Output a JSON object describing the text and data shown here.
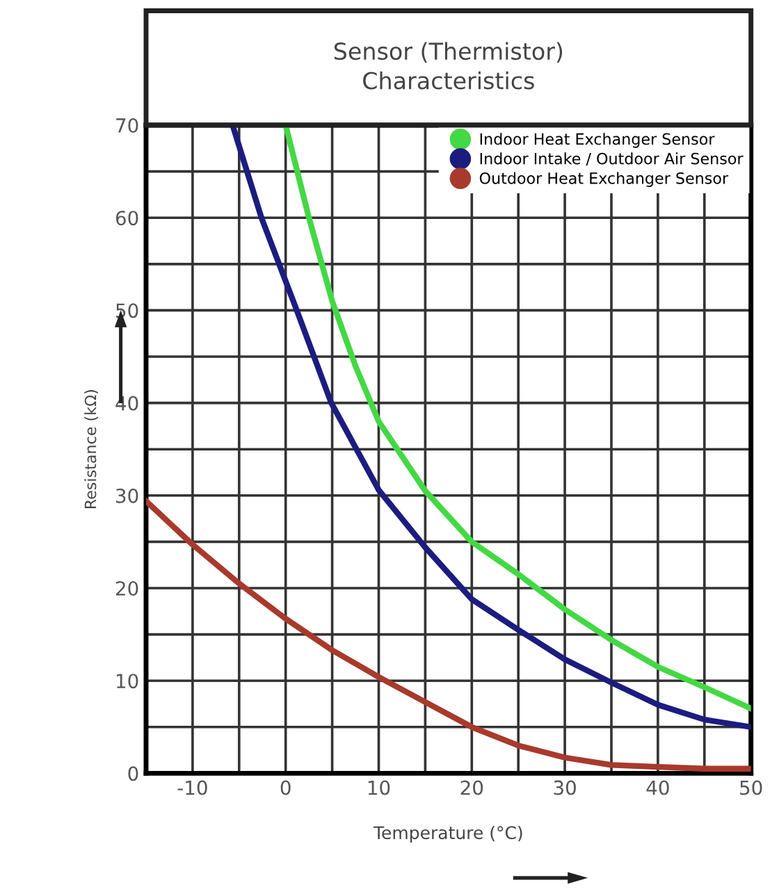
{
  "chart_data": {
    "type": "line",
    "title": "Sensor (Thermistor)\nCharacteristics",
    "xlabel": "Temperature (°C)",
    "ylabel": "Resistance (kΩ)",
    "xlim": [
      -15,
      50
    ],
    "ylim": [
      0,
      70
    ],
    "xticks": [
      {
        "value": -15,
        "label": null
      },
      -10,
      {
        "value": -5,
        "label": null
      },
      0,
      {
        "value": 5,
        "label": null
      },
      10,
      {
        "value": 15,
        "label": null
      },
      20,
      {
        "value": 25,
        "label": null
      },
      30,
      {
        "value": 35,
        "label": null
      },
      40,
      {
        "value": 45,
        "label": null
      },
      50
    ],
    "yticks": [
      0,
      {
        "value": 5,
        "label": null
      },
      10,
      {
        "value": 15,
        "label": null
      },
      20,
      {
        "value": 25,
        "label": null
      },
      30,
      {
        "value": 35,
        "label": null
      },
      40,
      {
        "value": 45,
        "label": null
      },
      50,
      {
        "value": 55,
        "label": null
      },
      60,
      {
        "value": 65,
        "label": null
      },
      70
    ],
    "grid": true,
    "legend": "top right",
    "line_style": "solid",
    "series": [
      {
        "name": "Indoor Heat Exchanger Sensor",
        "color": "#44d844",
        "x": [
          0,
          2.5,
          5,
          7.5,
          10,
          15,
          20,
          25,
          30,
          35,
          40,
          45,
          50
        ],
        "values": [
          70,
          60,
          51,
          44,
          38,
          30.5,
          25,
          21.5,
          17.7,
          14.4,
          11.5,
          9.3,
          7
        ]
      },
      {
        "name": "Indoor Intake / Outdoor Air Sensor",
        "color": "#1c1c80",
        "x": [
          -5.7,
          -2.6,
          1.2,
          4.9,
          10,
          15,
          20,
          25,
          30,
          35,
          40,
          45,
          50
        ],
        "values": [
          70,
          60,
          50,
          40,
          30.6,
          24.4,
          18.8,
          15.5,
          12.3,
          9.8,
          7.4,
          5.8,
          5
        ]
      },
      {
        "name": "Outdoor Heat Exchanger Sensor",
        "color": "#a83a2c",
        "x": [
          -15,
          -10,
          -5,
          0,
          5,
          10,
          15,
          20,
          25,
          30,
          35,
          40,
          45,
          50
        ],
        "values": [
          29.4,
          24.7,
          20.5,
          16.7,
          13.3,
          10.4,
          7.7,
          5,
          3,
          1.7,
          0.9,
          0.7,
          0.5,
          0.5
        ]
      }
    ]
  }
}
